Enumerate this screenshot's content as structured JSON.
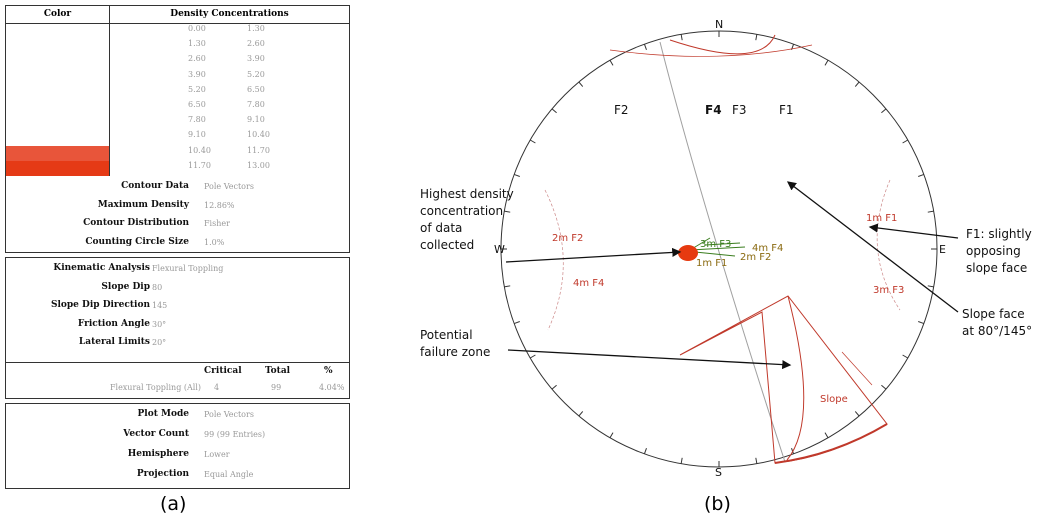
{
  "panel_a": {
    "caption": "(a)",
    "density_table": {
      "header_color": "Color",
      "header_density": "Density Concentrations",
      "rows": [
        {
          "lo": "0.00",
          "hi": "1.30",
          "color": "#ffffff"
        },
        {
          "lo": "1.30",
          "hi": "2.60",
          "color": "#ffffff"
        },
        {
          "lo": "2.60",
          "hi": "3.90",
          "color": "#ffffff"
        },
        {
          "lo": "3.90",
          "hi": "5.20",
          "color": "#ffffff"
        },
        {
          "lo": "5.20",
          "hi": "6.50",
          "color": "#ffffff"
        },
        {
          "lo": "6.50",
          "hi": "7.80",
          "color": "#ffffff"
        },
        {
          "lo": "7.80",
          "hi": "9.10",
          "color": "#ffffff"
        },
        {
          "lo": "9.10",
          "hi": "10.40",
          "color": "#ffffff"
        },
        {
          "lo": "10.40",
          "hi": "11.70",
          "color": "#e8553a"
        },
        {
          "lo": "11.70",
          "hi": "13.00",
          "color": "#e53a16"
        }
      ]
    },
    "contour": [
      {
        "label": "Contour Data",
        "value": "Pole Vectors"
      },
      {
        "label": "Maximum Density",
        "value": "12.86%"
      },
      {
        "label": "Contour Distribution",
        "value": "Fisher"
      },
      {
        "label": "Counting Circle Size",
        "value": "1.0%"
      }
    ],
    "kinematic": [
      {
        "label": "Kinematic Analysis",
        "value": "Flexural Toppling"
      },
      {
        "label": "Slope Dip",
        "value": "80"
      },
      {
        "label": "Slope Dip Direction",
        "value": "145"
      },
      {
        "label": "Friction Angle",
        "value": "30°"
      },
      {
        "label": "Lateral Limits",
        "value": "20°"
      }
    ],
    "critical_table": {
      "headers": [
        "Critical",
        "Total",
        "%"
      ],
      "row_label": "Flexural Toppling (All)",
      "values": [
        "4",
        "99",
        "4.04%"
      ]
    },
    "plot": [
      {
        "label": "Plot Mode",
        "value": "Pole Vectors"
      },
      {
        "label": "Vector Count",
        "value": "99 (99 Entries)"
      },
      {
        "label": "Hemisphere",
        "value": "Lower"
      },
      {
        "label": "Projection",
        "value": "Equal Angle"
      }
    ]
  },
  "panel_b": {
    "caption": "(b)",
    "compass": {
      "north": "N",
      "south": "S",
      "west": "W",
      "east": "E"
    },
    "set_labels": [
      "F2",
      "F4",
      "F3",
      "F1"
    ],
    "pole_labels": [
      "1m F1",
      "2m F2",
      "4m F4",
      "3m F3",
      "4m F4",
      "2m F2",
      "1m F1",
      "3m F3"
    ],
    "annotations": {
      "highest_density": [
        "Highest density",
        "concentration",
        "of data",
        "collected"
      ],
      "potential_failure": [
        "Potential",
        "failure zone"
      ],
      "f1_note": [
        "F1: slightly",
        "opposing",
        "slope face"
      ],
      "slope_face": [
        "Slope face",
        "at 80°/145°"
      ]
    },
    "colors": {
      "pole_red": "#c0392b",
      "pole_green": "#3a7d1e",
      "hotspot": "#e63a10",
      "arrow": "#111111"
    }
  }
}
